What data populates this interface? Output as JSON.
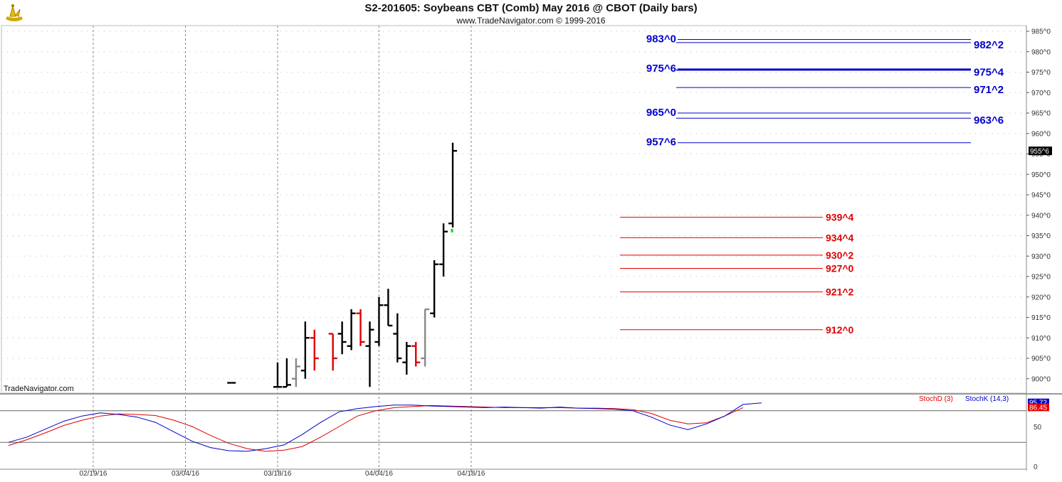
{
  "header": {
    "title": "S2-201605:  Soybeans CBT (Comb) May 2016 @ CBOT  (Daily bars)",
    "subtitle": "www.TradeNavigator.com © 1999-2016",
    "watermark": "TradeNavigator.com"
  },
  "colors": {
    "up_bar": "#000000",
    "down_bar": "#e00000",
    "neutral_bar": "#888888",
    "resistance": "#0000cc",
    "support": "#e00000",
    "stoch_d": "#e00000",
    "stoch_k": "#0000cc"
  },
  "chart_data": [
    {
      "type": "bar",
      "subtype": "ohlc",
      "y_tick_labels": [
        "985^0",
        "980^0",
        "975^0",
        "970^0",
        "965^0",
        "960^0",
        "955^0",
        "950^0",
        "945^0",
        "940^0",
        "935^0",
        "930^0",
        "925^0",
        "920^0",
        "915^0",
        "910^0",
        "905^0",
        "900^0"
      ],
      "ylim": [
        898,
        986
      ],
      "x_date_labels": [
        "02/19/16",
        "03/04/16",
        "03/18/16",
        "04/04/16",
        "04/18/16"
      ],
      "last_price_label": "955^6",
      "bars": [
        {
          "date": "03/11/16",
          "open": 899,
          "high": 899,
          "low": 899,
          "close": 899,
          "color": "black"
        },
        {
          "date": "03/18/16",
          "open": 898,
          "high": 904,
          "low": 898,
          "close": 898,
          "color": "black"
        },
        {
          "date": "03/21/16",
          "open": 898,
          "high": 905,
          "low": 898,
          "close": 898.5,
          "color": "black"
        },
        {
          "date": "03/22/16",
          "open": 900,
          "high": 905,
          "low": 898,
          "close": 903,
          "color": "gray"
        },
        {
          "date": "03/23/16",
          "open": 902,
          "high": 914,
          "low": 900,
          "close": 910,
          "color": "black"
        },
        {
          "date": "03/24/16",
          "open": 910,
          "high": 912,
          "low": 902,
          "close": 905,
          "color": "red"
        },
        {
          "date": "03/28/16",
          "open": 911,
          "high": 911,
          "low": 902,
          "close": 905,
          "color": "red"
        },
        {
          "date": "03/29/16",
          "open": 911,
          "high": 914,
          "low": 906,
          "close": 909,
          "color": "black"
        },
        {
          "date": "03/30/16",
          "open": 908,
          "high": 917,
          "low": 907,
          "close": 916,
          "color": "black"
        },
        {
          "date": "03/31/16",
          "open": 916,
          "high": 917,
          "low": 908,
          "close": 909,
          "color": "red"
        },
        {
          "date": "04/01/16",
          "open": 908,
          "high": 914,
          "low": 898,
          "close": 912,
          "color": "black"
        },
        {
          "date": "04/04/16",
          "open": 909,
          "high": 920,
          "low": 908,
          "close": 918,
          "color": "black"
        },
        {
          "date": "04/05/16",
          "open": 918,
          "high": 922,
          "low": 913,
          "close": 913,
          "color": "black"
        },
        {
          "date": "04/06/16",
          "open": 911,
          "high": 916,
          "low": 904,
          "close": 905,
          "color": "black"
        },
        {
          "date": "04/07/16",
          "open": 904,
          "high": 909,
          "low": 901,
          "close": 908,
          "color": "black"
        },
        {
          "date": "04/08/16",
          "open": 908,
          "high": 909,
          "low": 903,
          "close": 904,
          "color": "red"
        },
        {
          "date": "04/11/16",
          "open": 905,
          "high": 917,
          "low": 903,
          "close": 917,
          "color": "gray"
        },
        {
          "date": "04/12/16",
          "open": 916,
          "high": 929,
          "low": 915,
          "close": 928,
          "color": "black"
        },
        {
          "date": "04/13/16",
          "open": 928,
          "high": 938,
          "low": 925,
          "close": 936,
          "color": "black"
        },
        {
          "date": "04/14/16",
          "open": 938,
          "high": 957.75,
          "low": 937,
          "close": 955.75,
          "color": "black"
        }
      ],
      "resistance_levels": [
        {
          "value": 983,
          "label": "983^0"
        },
        {
          "value": 982.25,
          "label": "982^2"
        },
        {
          "value": 975.75,
          "label": "975^6"
        },
        {
          "value": 975.5,
          "label": "975^4"
        },
        {
          "value": 971.25,
          "label": "971^2"
        },
        {
          "value": 965,
          "label": "965^0"
        },
        {
          "value": 963.75,
          "label": "963^6"
        },
        {
          "value": 957.75,
          "label": "957^6"
        }
      ],
      "support_levels": [
        {
          "value": 939.5,
          "label": "939^4"
        },
        {
          "value": 934.5,
          "label": "934^4"
        },
        {
          "value": 930.25,
          "label": "930^2"
        },
        {
          "value": 927,
          "label": "927^0"
        },
        {
          "value": 921.25,
          "label": "921^2"
        },
        {
          "value": 912,
          "label": "912^0"
        }
      ]
    },
    {
      "type": "line",
      "series": [
        {
          "name": "StochD (3)",
          "last_label": "86.45",
          "values": [
            14,
            25,
            38,
            52,
            62,
            70,
            74,
            73,
            71,
            62,
            50,
            33,
            18,
            8,
            3,
            5,
            12,
            30,
            50,
            70,
            80,
            86,
            88,
            90,
            89,
            88,
            87,
            86,
            86,
            86,
            86,
            85,
            85,
            84,
            82,
            75,
            62,
            55,
            57,
            70,
            86
          ]
        },
        {
          "name": "StochK (14,3)",
          "last_label": "95.72",
          "values": [
            20,
            30,
            45,
            60,
            70,
            76,
            73,
            68,
            58,
            40,
            22,
            10,
            4,
            3,
            8,
            15,
            35,
            58,
            78,
            84,
            88,
            91,
            91,
            89,
            88,
            87,
            86,
            87,
            86,
            85,
            87,
            85,
            84,
            83,
            80,
            68,
            53,
            44,
            55,
            70,
            92,
            95
          ]
        }
      ],
      "y_tick_labels": [
        "50",
        "0"
      ],
      "ylim": [
        0,
        100
      ]
    }
  ]
}
